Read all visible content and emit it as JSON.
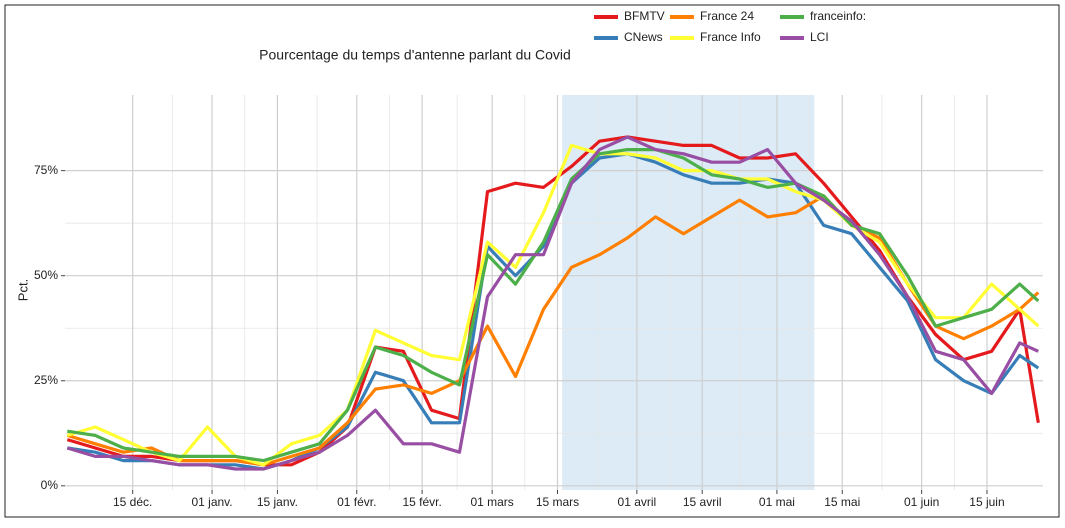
{
  "chart_data": {
    "type": "line",
    "title": "Pourcentage du temps d'antenne parlant du Covid",
    "y_label": "Pct.",
    "x": [
      0,
      6,
      12,
      18,
      24,
      30,
      36,
      42,
      48,
      54,
      60,
      66,
      72,
      78,
      84,
      90,
      96,
      102,
      108,
      114,
      120,
      126,
      132,
      138,
      144,
      150,
      156,
      162,
      168,
      174,
      180,
      186,
      192,
      198,
      204,
      208
    ],
    "xlim": [
      -0.5,
      209
    ],
    "xticks": [
      {
        "value": 14,
        "label": "15 déc."
      },
      {
        "value": 31,
        "label": "01 janv."
      },
      {
        "value": 45,
        "label": "15 janv."
      },
      {
        "value": 62,
        "label": "01 févr."
      },
      {
        "value": 76,
        "label": "15 févr."
      },
      {
        "value": 91,
        "label": "01 mars"
      },
      {
        "value": 105,
        "label": "15 mars"
      },
      {
        "value": 122,
        "label": "01 avril"
      },
      {
        "value": 136,
        "label": "15 avril"
      },
      {
        "value": 152,
        "label": "01 mai"
      },
      {
        "value": 166,
        "label": "15 mai"
      },
      {
        "value": 183,
        "label": "01 juin"
      },
      {
        "value": 197,
        "label": "15 juin"
      }
    ],
    "ylim": [
      -1,
      93
    ],
    "yticks": [
      {
        "value": 0,
        "label": "0%"
      },
      {
        "value": 25,
        "label": "25%"
      },
      {
        "value": 50,
        "label": "50%"
      },
      {
        "value": 75,
        "label": "75%"
      }
    ],
    "grid": true,
    "shaded_range": [
      106,
      160
    ],
    "legend_position": "top",
    "series": [
      {
        "name": "BFMTV",
        "color": "#e41a1c",
        "values": [
          11,
          9,
          7,
          7,
          6,
          6,
          6,
          5,
          5,
          8,
          14,
          33,
          32,
          18,
          16,
          70,
          72,
          71,
          76,
          82,
          83,
          82,
          81,
          81,
          78,
          78,
          79,
          72,
          64,
          56,
          45,
          36,
          30,
          32,
          42,
          15
        ]
      },
      {
        "name": "CNews",
        "color": "#377eb8",
        "values": [
          9,
          8,
          6,
          6,
          5,
          5,
          5,
          4,
          6,
          9,
          14,
          27,
          25,
          15,
          15,
          57,
          50,
          57,
          72,
          78,
          79,
          77,
          74,
          72,
          72,
          73,
          72,
          62,
          60,
          52,
          44,
          30,
          25,
          22,
          31,
          28
        ]
      },
      {
        "name": "France 24",
        "color": "#ff7f00",
        "values": [
          12,
          10,
          8,
          9,
          6,
          6,
          6,
          5,
          7,
          9,
          15,
          23,
          24,
          22,
          25,
          38,
          26,
          42,
          52,
          55,
          59,
          64,
          60,
          64,
          68,
          64,
          65,
          69,
          62,
          59,
          48,
          38,
          35,
          38,
          42,
          46
        ]
      },
      {
        "name": "France Info",
        "color": "#ffff33",
        "values": [
          12,
          14,
          11,
          8,
          6,
          14,
          7,
          5,
          10,
          12,
          18,
          37,
          34,
          31,
          30,
          58,
          52,
          65,
          81,
          79,
          79,
          78,
          75,
          75,
          73,
          73,
          70,
          68,
          62,
          58,
          48,
          40,
          40,
          48,
          42,
          38
        ]
      },
      {
        "name": "franceinfo:",
        "color": "#4daf4a",
        "values": [
          13,
          12,
          9,
          8,
          7,
          7,
          7,
          6,
          8,
          10,
          18,
          33,
          31,
          27,
          24,
          55,
          48,
          58,
          73,
          79,
          80,
          80,
          78,
          74,
          73,
          71,
          72,
          69,
          62,
          60,
          50,
          38,
          40,
          42,
          48,
          44
        ]
      },
      {
        "name": "LCI",
        "color": "#984ea3",
        "values": [
          9,
          7,
          7,
          6,
          5,
          5,
          4,
          4,
          6,
          8,
          12,
          18,
          10,
          10,
          8,
          45,
          55,
          55,
          72,
          80,
          83,
          80,
          79,
          77,
          77,
          80,
          72,
          68,
          63,
          55,
          45,
          32,
          30,
          22,
          34,
          32
        ]
      }
    ]
  }
}
